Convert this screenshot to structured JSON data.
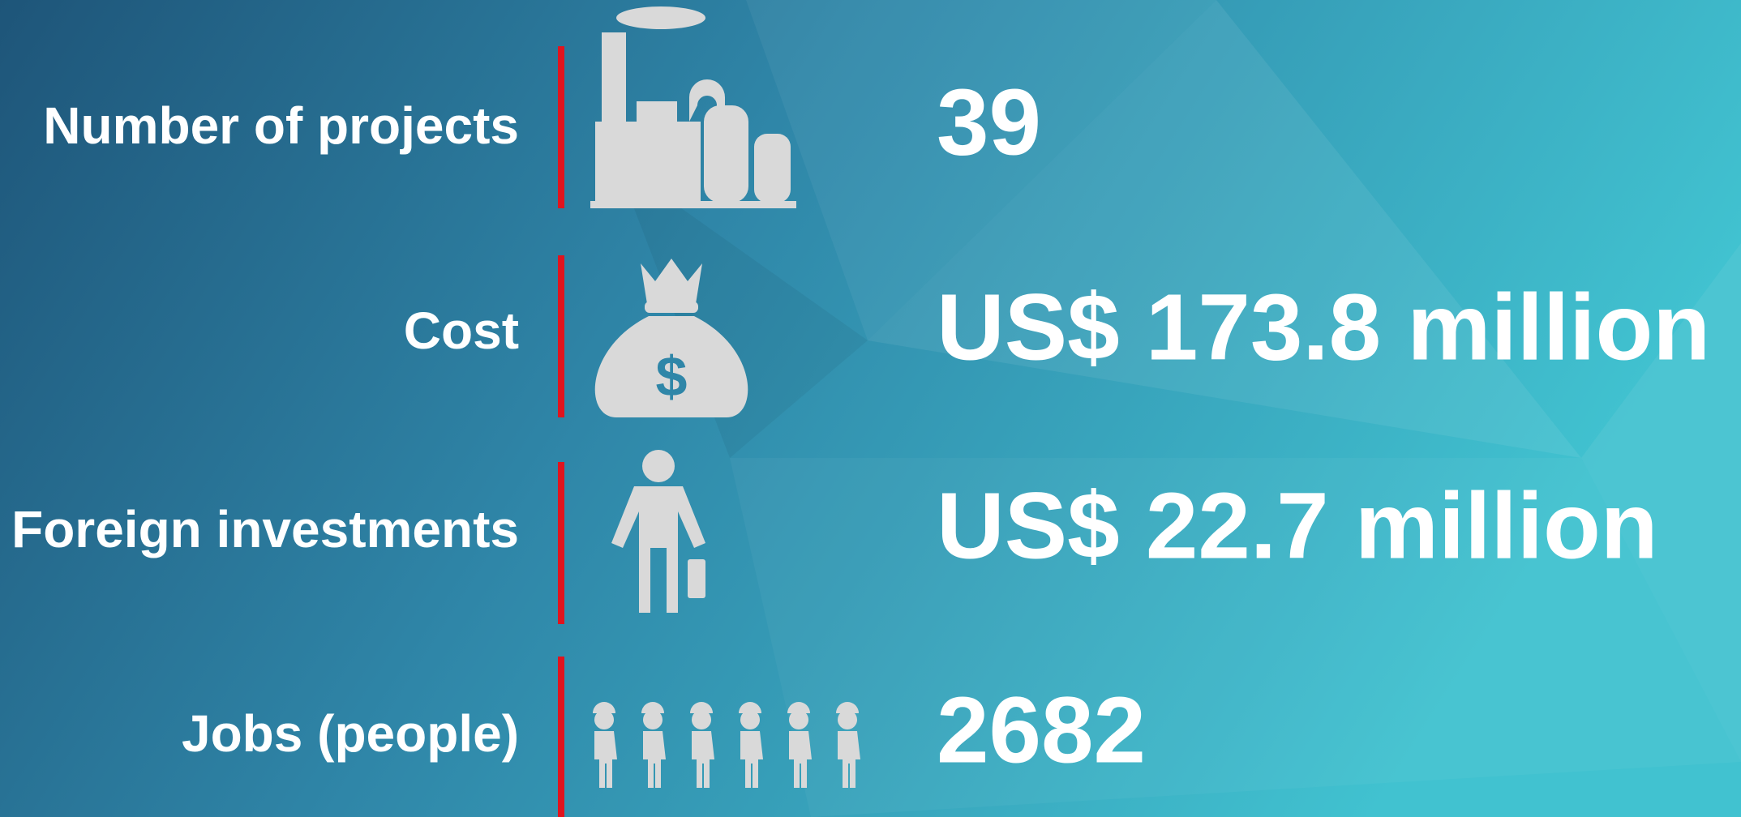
{
  "rows": [
    {
      "label": "Number of projects",
      "value": "39"
    },
    {
      "label": "Cost",
      "value": "US$ 173.8 million"
    },
    {
      "label": "Foreign investments",
      "value": "US$ 22.7 million"
    },
    {
      "label": "Jobs (people)",
      "value": "2682"
    }
  ]
}
